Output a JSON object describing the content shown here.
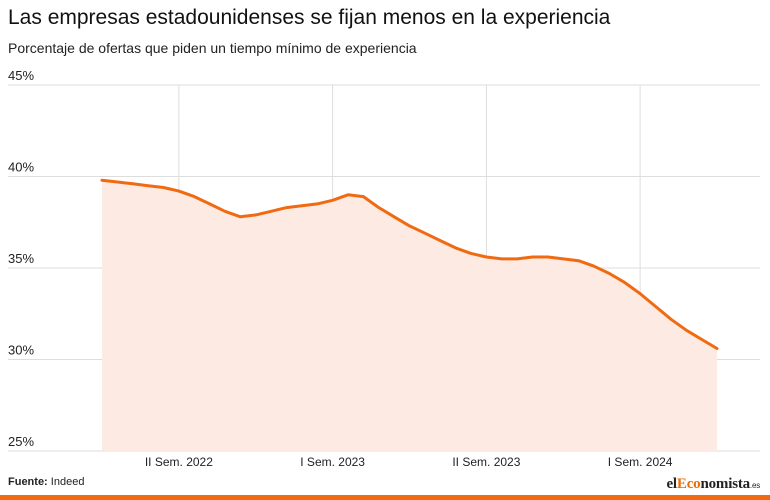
{
  "header": {
    "title": "Las empresas estadounidenses se fijan menos en la experiencia",
    "subtitle": "Porcentaje de ofertas que piden un tiempo mínimo de experiencia"
  },
  "footer": {
    "source_label": "Fuente:",
    "source_value": "Indeed",
    "brand_pre": "el",
    "brand_highlight": "Eco",
    "brand_post": "nomista",
    "brand_tld": ".es"
  },
  "colors": {
    "line": "#f06a12",
    "area": "#fdeae2",
    "grid": "#dddddd",
    "brand_accent": "#ef6c00"
  },
  "chart_data": {
    "type": "area",
    "title": "Las empresas estadounidenses se fijan menos en la experiencia",
    "subtitle": "Porcentaje de ofertas que piden un tiempo mínimo de experiencia",
    "ylim": [
      25,
      45
    ],
    "yticks": [
      25,
      30,
      35,
      40,
      45
    ],
    "ytick_labels": [
      "25%",
      "30%",
      "35%",
      "40%",
      "45%"
    ],
    "xticks": [
      {
        "label": "II Sem.  2022",
        "index": 5
      },
      {
        "label": "I Sem. 2023",
        "index": 15
      },
      {
        "label": "II Sem.  2023",
        "index": 25
      },
      {
        "label": "I Sem. 2024",
        "index": 35
      }
    ],
    "grid": true,
    "x": [
      0,
      1,
      2,
      3,
      4,
      5,
      6,
      7,
      8,
      9,
      10,
      11,
      12,
      13,
      14,
      15,
      16,
      17,
      18,
      19,
      20,
      21,
      22,
      23,
      24,
      25,
      26,
      27,
      28,
      29,
      30,
      31,
      32,
      33,
      34,
      35,
      36,
      37,
      38,
      39,
      40
    ],
    "values": [
      39.8,
      39.7,
      39.6,
      39.5,
      39.4,
      39.2,
      38.9,
      38.5,
      38.1,
      37.8,
      37.9,
      38.1,
      38.3,
      38.4,
      38.5,
      38.7,
      39.0,
      38.9,
      38.3,
      37.8,
      37.3,
      36.9,
      36.5,
      36.1,
      35.8,
      35.6,
      35.5,
      35.5,
      35.6,
      35.6,
      35.5,
      35.4,
      35.1,
      34.7,
      34.2,
      33.6,
      32.9,
      32.2,
      31.6,
      31.1,
      30.6
    ]
  }
}
